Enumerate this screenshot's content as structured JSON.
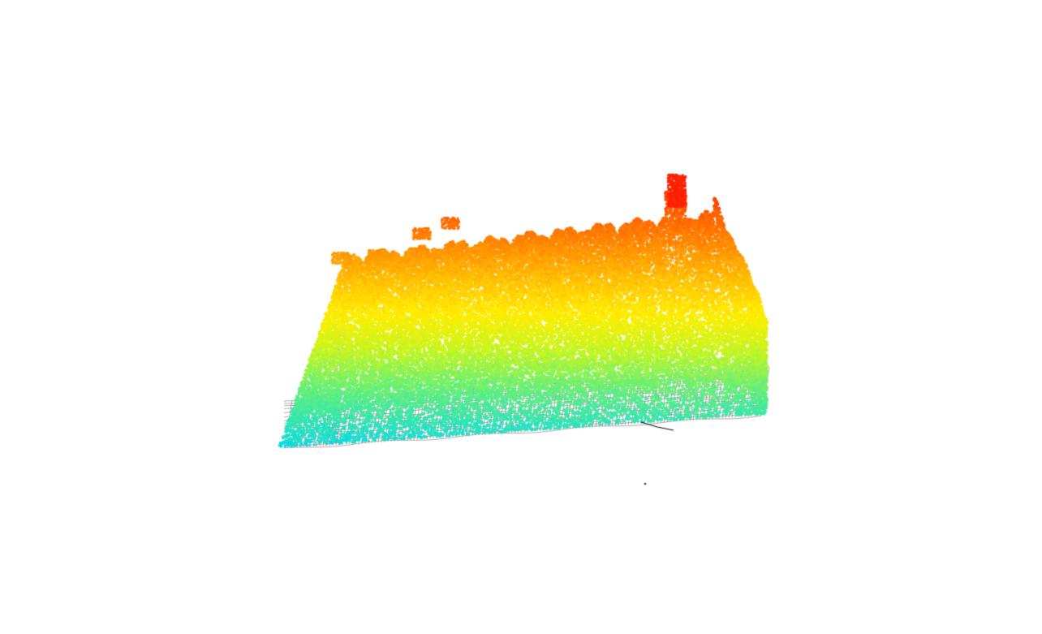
{
  "viewer": {
    "background": "#ffffff",
    "view": "perspective",
    "interaction": "orbit"
  },
  "point_cloud": {
    "kind": "lidar-forest-canopy",
    "color_mode": "height",
    "colormap": "jet",
    "colormap_stops": [
      "#00d8f0",
      "#30e8b0",
      "#70f070",
      "#c8f520",
      "#ffee00",
      "#ffc000",
      "#ff8a00",
      "#ff5a00",
      "#ff1a00"
    ]
  },
  "terrain_mesh": {
    "style": "wireframe",
    "stroke_color": "#2a2a2a"
  },
  "markers": [
    {
      "name": "isolated-point",
      "color": "#333366"
    }
  ]
}
